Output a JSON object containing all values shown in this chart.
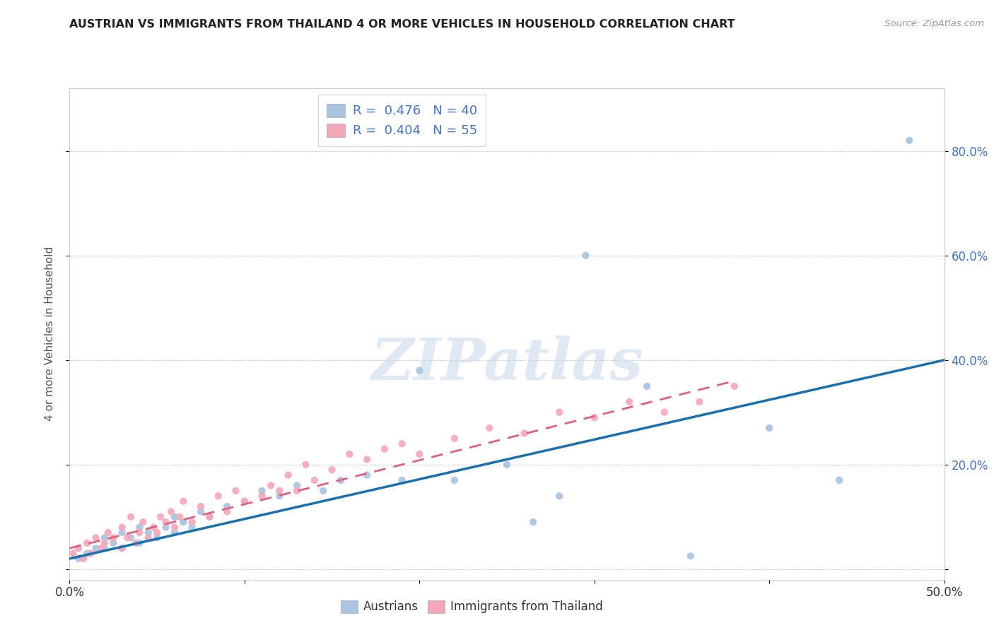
{
  "title": "AUSTRIAN VS IMMIGRANTS FROM THAILAND 4 OR MORE VEHICLES IN HOUSEHOLD CORRELATION CHART",
  "source": "Source: ZipAtlas.com",
  "ylabel": "4 or more Vehicles in Household",
  "xlim": [
    0.0,
    0.5
  ],
  "ylim": [
    -0.02,
    0.92
  ],
  "background_color": "#ffffff",
  "grid_color": "#c8c8c8",
  "watermark_text": "ZIPatlas",
  "austrians_color": "#a8c4e0",
  "thailand_color": "#f4a7b9",
  "austrians_line_color": "#1a6fad",
  "thailand_line_color": "#e06080",
  "tick_label_color": "#4472c4",
  "R_austrians": 0.476,
  "N_austrians": 40,
  "R_thailand": 0.404,
  "N_thailand": 55,
  "austrians_x": [
    0.005,
    0.01,
    0.015,
    0.02,
    0.02,
    0.025,
    0.03,
    0.03,
    0.035,
    0.04,
    0.04,
    0.045,
    0.05,
    0.055,
    0.06,
    0.06,
    0.065,
    0.07,
    0.075,
    0.08,
    0.09,
    0.1,
    0.11,
    0.12,
    0.13,
    0.145,
    0.155,
    0.17,
    0.19,
    0.2,
    0.22,
    0.25,
    0.265,
    0.28,
    0.295,
    0.33,
    0.355,
    0.4,
    0.44,
    0.48
  ],
  "austrians_y": [
    0.02,
    0.03,
    0.04,
    0.04,
    0.06,
    0.05,
    0.04,
    0.07,
    0.06,
    0.05,
    0.08,
    0.07,
    0.06,
    0.08,
    0.07,
    0.1,
    0.09,
    0.08,
    0.11,
    0.1,
    0.12,
    0.13,
    0.15,
    0.14,
    0.16,
    0.15,
    0.17,
    0.18,
    0.17,
    0.38,
    0.17,
    0.2,
    0.09,
    0.14,
    0.6,
    0.35,
    0.025,
    0.27,
    0.17,
    0.82
  ],
  "thailand_x": [
    0.002,
    0.005,
    0.008,
    0.01,
    0.012,
    0.015,
    0.018,
    0.02,
    0.022,
    0.025,
    0.03,
    0.03,
    0.033,
    0.035,
    0.038,
    0.04,
    0.042,
    0.045,
    0.048,
    0.05,
    0.052,
    0.055,
    0.058,
    0.06,
    0.063,
    0.065,
    0.07,
    0.075,
    0.08,
    0.085,
    0.09,
    0.095,
    0.1,
    0.11,
    0.115,
    0.12,
    0.125,
    0.13,
    0.135,
    0.14,
    0.15,
    0.16,
    0.17,
    0.18,
    0.19,
    0.2,
    0.22,
    0.24,
    0.26,
    0.28,
    0.3,
    0.32,
    0.34,
    0.36,
    0.38
  ],
  "thailand_y": [
    0.03,
    0.04,
    0.02,
    0.05,
    0.03,
    0.06,
    0.04,
    0.05,
    0.07,
    0.06,
    0.04,
    0.08,
    0.06,
    0.1,
    0.05,
    0.07,
    0.09,
    0.06,
    0.08,
    0.07,
    0.1,
    0.09,
    0.11,
    0.08,
    0.1,
    0.13,
    0.09,
    0.12,
    0.1,
    0.14,
    0.11,
    0.15,
    0.13,
    0.14,
    0.16,
    0.15,
    0.18,
    0.15,
    0.2,
    0.17,
    0.19,
    0.22,
    0.21,
    0.23,
    0.24,
    0.22,
    0.25,
    0.27,
    0.26,
    0.3,
    0.29,
    0.32,
    0.3,
    0.32,
    0.35
  ],
  "austria_line_x": [
    0.0,
    0.5
  ],
  "austria_line_y": [
    0.02,
    0.4
  ],
  "thailand_line_x": [
    0.0,
    0.38
  ],
  "thailand_line_y": [
    0.04,
    0.36
  ]
}
